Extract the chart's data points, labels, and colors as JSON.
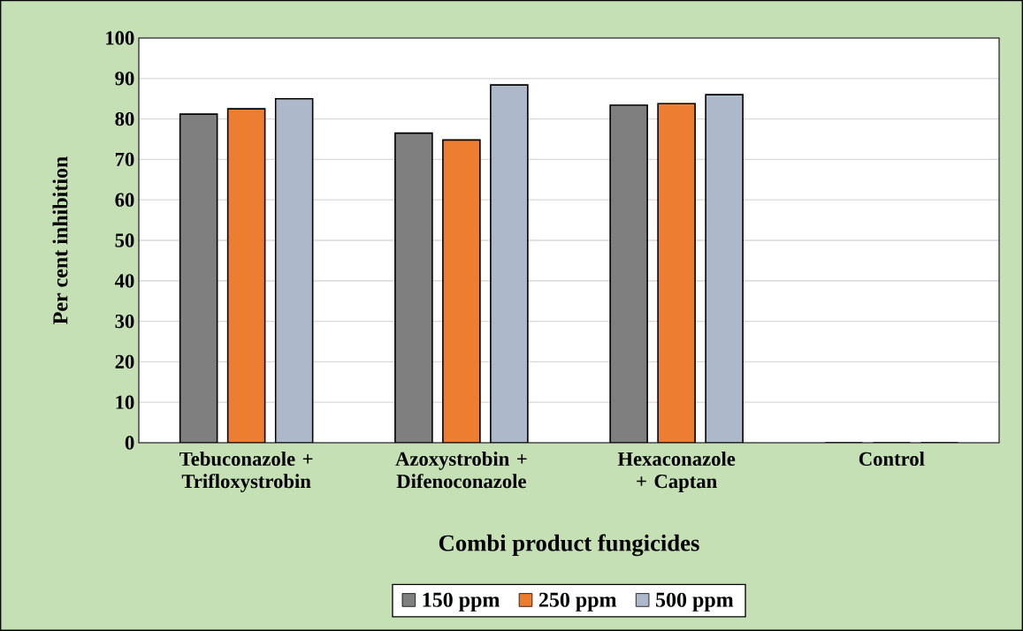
{
  "chart_data": {
    "type": "bar",
    "xlabel": "Combi product fungicides",
    "ylabel": "Per cent inhibition",
    "categories": [
      "Tebuconazole + Trifloxystrobin",
      "Azoxystrobin + Difenoconazole",
      "Hexaconazole + Captan",
      "Control"
    ],
    "series": [
      {
        "name": "150 ppm",
        "color": "#7f7f7f",
        "values": [
          81.2,
          76.5,
          83.4,
          0
        ]
      },
      {
        "name": "250 ppm",
        "color": "#ed7d31",
        "values": [
          82.5,
          74.8,
          83.8,
          0
        ]
      },
      {
        "name": "500 ppm",
        "color": "#adb9ca",
        "values": [
          85.0,
          88.4,
          86.0,
          0
        ]
      }
    ],
    "ylim": [
      0,
      100
    ],
    "yticks": [
      0,
      10,
      20,
      30,
      40,
      50,
      60,
      70,
      80,
      90,
      100
    ],
    "grid": "y",
    "legend": "bottom"
  }
}
